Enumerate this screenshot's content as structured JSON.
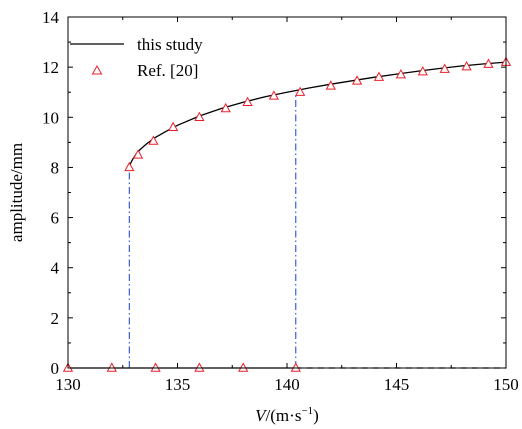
{
  "chart_data": {
    "type": "line",
    "title": "",
    "xlabel_italic": "V",
    "xlabel_rest": "/(m·s",
    "xlabel_sup": "−1",
    "xlabel_close": ")",
    "ylabel": "amplitude/mm",
    "xlim": [
      130,
      150
    ],
    "ylim": [
      0,
      14
    ],
    "xticks": [
      130,
      135,
      140,
      145,
      150
    ],
    "yticks": [
      0,
      2,
      4,
      6,
      8,
      10,
      12,
      14
    ],
    "legend_position": "top-left",
    "grid": false,
    "series": [
      {
        "name": "this study",
        "style": "solid",
        "color": "#000000",
        "x": [
          132.8,
          132.85,
          132.95,
          133.1,
          133.3,
          133.6,
          134.0,
          134.5,
          135.0,
          136.0,
          137.0,
          138.0,
          139.0,
          140.0,
          141.0,
          142.0,
          143.0,
          144.0,
          145.0,
          146.0,
          147.0,
          148.0,
          149.0,
          150.0
        ],
        "y": [
          8.0,
          8.15,
          8.32,
          8.52,
          8.72,
          8.95,
          9.2,
          9.45,
          9.68,
          10.05,
          10.35,
          10.6,
          10.82,
          11.0,
          11.17,
          11.32,
          11.46,
          11.6,
          11.72,
          11.84,
          11.95,
          12.05,
          12.13,
          12.2
        ]
      },
      {
        "name": "Ref. [20]",
        "style": "marker",
        "marker": "triangle-open",
        "color": "#e8202a",
        "x": [
          132.8,
          133.2,
          133.9,
          134.8,
          136.0,
          137.2,
          138.2,
          139.4,
          140.6,
          142.0,
          143.2,
          144.2,
          145.2,
          146.2,
          147.2,
          148.2,
          149.2,
          150.0
        ],
        "y": [
          8.0,
          8.5,
          9.05,
          9.6,
          10.0,
          10.35,
          10.6,
          10.85,
          11.0,
          11.25,
          11.45,
          11.6,
          11.7,
          11.82,
          11.92,
          12.02,
          12.12,
          12.2
        ]
      },
      {
        "name": "",
        "style": "solid",
        "color": "#000000",
        "x": [
          130,
          140.4
        ],
        "y": [
          0,
          0
        ]
      },
      {
        "name": "",
        "style": "dashed",
        "color": "#000000",
        "x": [
          140.4,
          150
        ],
        "y": [
          0,
          0
        ]
      },
      {
        "name": "",
        "style": "marker",
        "marker": "triangle-open",
        "color": "#e8202a",
        "x": [
          130,
          132,
          134,
          136,
          138,
          140.4
        ],
        "y": [
          0,
          0,
          0,
          0,
          0,
          0
        ]
      }
    ],
    "jump_lines": [
      {
        "x": 132.8,
        "y_from": 0,
        "y_to": 8.0,
        "style": "dash-dot",
        "color": "#2a4fd0"
      },
      {
        "x": 140.4,
        "y_from": 0,
        "y_to": 11.0,
        "style": "dash-dot",
        "color": "#2a4fd0"
      }
    ]
  }
}
